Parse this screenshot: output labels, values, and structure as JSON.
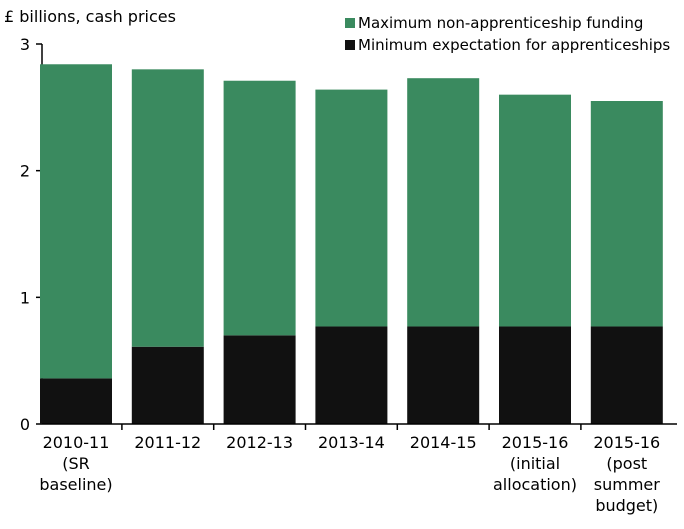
{
  "chart_data": {
    "type": "stacked_bar",
    "y_label": "£ billions, cash prices",
    "categories": [
      [
        "2010-11",
        "(SR",
        "baseline)"
      ],
      [
        "2011-12"
      ],
      [
        "2012-13"
      ],
      [
        "2013-14"
      ],
      [
        "2014-15"
      ],
      [
        "2015-16",
        "(initial",
        "allocation)"
      ],
      [
        "2015-16",
        "(post",
        "summer",
        "budget)"
      ]
    ],
    "series": [
      {
        "name": "Minimum expectation for apprenticeships",
        "color": "#111111",
        "values": [
          0.36,
          0.61,
          0.7,
          0.77,
          0.77,
          0.77,
          0.77
        ]
      },
      {
        "name": "Maximum non-apprenticeship funding",
        "color": "#3a8a5f",
        "values": [
          2.48,
          2.19,
          2.01,
          1.87,
          1.96,
          1.83,
          1.78
        ]
      }
    ],
    "ylim": [
      0,
      3
    ],
    "yticks": [
      0,
      1,
      2,
      3
    ]
  }
}
